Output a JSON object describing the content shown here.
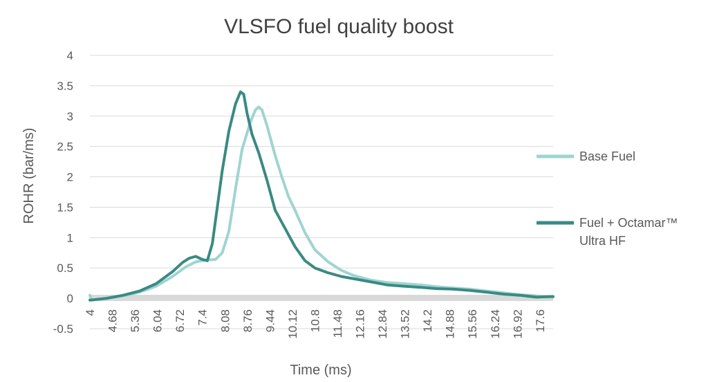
{
  "chart_data": {
    "type": "line",
    "title": "VLSFO fuel quality boost",
    "xlabel": "Time (ms)",
    "ylabel": "ROHR (bar/ms)",
    "xlim": [
      4,
      18
    ],
    "ylim": [
      -0.5,
      4
    ],
    "x_ticks": [
      "4",
      "4.68",
      "5.36",
      "6.04",
      "6.72",
      "7.4",
      "8.08",
      "8.76",
      "9.44",
      "10.12",
      "10.8",
      "11.48",
      "12.16",
      "12.84",
      "13.52",
      "14.2",
      "14.88",
      "15.56",
      "16.24",
      "16.92",
      "17.6"
    ],
    "y_ticks": [
      "4",
      "3.5",
      "3",
      "2.5",
      "2",
      "1.5",
      "1",
      "0.5",
      "0",
      "-0.5"
    ],
    "grid": true,
    "legend_position": "right",
    "series": [
      {
        "name": "Base Fuel",
        "color": "#9fd4d1",
        "points": [
          [
            4.0,
            0.05
          ],
          [
            4.05,
            -0.03
          ],
          [
            4.5,
            0.0
          ],
          [
            5.0,
            0.04
          ],
          [
            5.5,
            0.1
          ],
          [
            6.0,
            0.2
          ],
          [
            6.5,
            0.36
          ],
          [
            6.9,
            0.52
          ],
          [
            7.2,
            0.6
          ],
          [
            7.5,
            0.63
          ],
          [
            7.8,
            0.64
          ],
          [
            8.0,
            0.75
          ],
          [
            8.2,
            1.1
          ],
          [
            8.4,
            1.8
          ],
          [
            8.6,
            2.45
          ],
          [
            8.85,
            2.9
          ],
          [
            9.0,
            3.1
          ],
          [
            9.1,
            3.15
          ],
          [
            9.2,
            3.1
          ],
          [
            9.35,
            2.85
          ],
          [
            9.6,
            2.35
          ],
          [
            9.8,
            2.0
          ],
          [
            10.0,
            1.68
          ],
          [
            10.2,
            1.45
          ],
          [
            10.5,
            1.08
          ],
          [
            10.8,
            0.8
          ],
          [
            11.2,
            0.6
          ],
          [
            11.6,
            0.46
          ],
          [
            12.0,
            0.37
          ],
          [
            12.5,
            0.3
          ],
          [
            13.0,
            0.26
          ],
          [
            13.5,
            0.24
          ],
          [
            14.0,
            0.22
          ],
          [
            14.5,
            0.19
          ],
          [
            15.0,
            0.17
          ],
          [
            15.5,
            0.15
          ],
          [
            16.0,
            0.12
          ],
          [
            16.5,
            0.09
          ],
          [
            17.0,
            0.06
          ],
          [
            17.5,
            0.04
          ],
          [
            18.0,
            0.02
          ]
        ]
      },
      {
        "name": "Fuel + Octamar™ Ultra HF",
        "color": "#3a8a83",
        "points": [
          [
            4.0,
            -0.03
          ],
          [
            4.5,
            0.0
          ],
          [
            5.0,
            0.05
          ],
          [
            5.5,
            0.12
          ],
          [
            6.0,
            0.24
          ],
          [
            6.5,
            0.44
          ],
          [
            6.8,
            0.59
          ],
          [
            7.0,
            0.66
          ],
          [
            7.2,
            0.69
          ],
          [
            7.4,
            0.64
          ],
          [
            7.55,
            0.62
          ],
          [
            7.7,
            0.9
          ],
          [
            7.85,
            1.5
          ],
          [
            8.0,
            2.1
          ],
          [
            8.2,
            2.75
          ],
          [
            8.4,
            3.2
          ],
          [
            8.55,
            3.4
          ],
          [
            8.65,
            3.36
          ],
          [
            8.75,
            3.05
          ],
          [
            8.9,
            2.7
          ],
          [
            9.1,
            2.4
          ],
          [
            9.35,
            1.95
          ],
          [
            9.6,
            1.45
          ],
          [
            9.9,
            1.15
          ],
          [
            10.2,
            0.85
          ],
          [
            10.5,
            0.62
          ],
          [
            10.8,
            0.5
          ],
          [
            11.2,
            0.42
          ],
          [
            11.6,
            0.36
          ],
          [
            12.0,
            0.32
          ],
          [
            12.5,
            0.27
          ],
          [
            13.0,
            0.22
          ],
          [
            13.5,
            0.2
          ],
          [
            14.0,
            0.18
          ],
          [
            14.5,
            0.16
          ],
          [
            15.0,
            0.15
          ],
          [
            15.5,
            0.13
          ],
          [
            16.0,
            0.1
          ],
          [
            16.5,
            0.07
          ],
          [
            17.0,
            0.05
          ],
          [
            17.5,
            0.02
          ],
          [
            18.0,
            0.03
          ]
        ]
      }
    ]
  }
}
